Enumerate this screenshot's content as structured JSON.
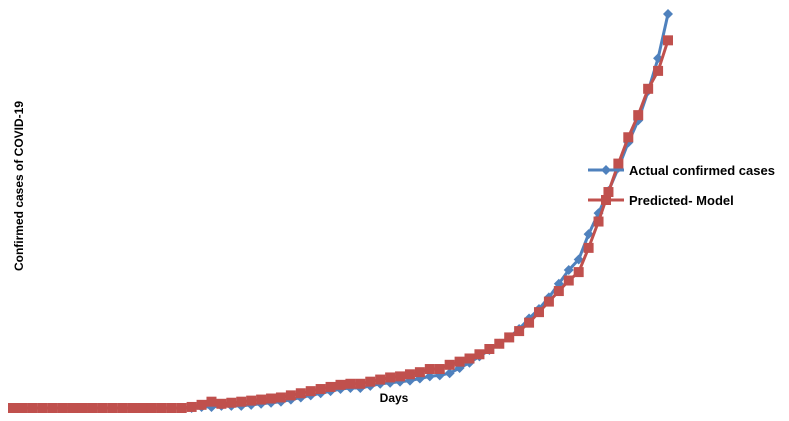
{
  "chart_data": {
    "type": "line",
    "xlabel": "Days",
    "ylabel": "Confirmed cases of COVID-19",
    "grid": false,
    "legend_position": "right",
    "x": [
      1,
      2,
      3,
      4,
      5,
      6,
      7,
      8,
      9,
      10,
      11,
      12,
      13,
      14,
      15,
      16,
      17,
      18,
      19,
      20,
      21,
      22,
      23,
      24,
      25,
      26,
      27,
      28,
      29,
      30,
      31,
      32,
      33,
      34,
      35,
      36,
      37,
      38,
      39,
      40,
      41,
      42,
      43,
      44,
      45,
      46,
      47,
      48,
      49,
      50,
      51,
      52,
      53,
      54,
      55,
      56,
      57,
      58,
      59,
      60,
      61,
      62,
      63,
      64,
      65,
      66,
      67
    ],
    "series": [
      {
        "name": "Actual confirmed cases",
        "color": "#4f81bd",
        "marker": "diamond",
        "values": [
          0,
          0,
          0,
          0,
          0,
          0,
          0,
          0,
          0,
          0,
          0,
          0,
          0,
          0,
          0,
          0,
          0,
          0,
          0,
          1,
          1,
          2,
          2,
          2,
          3,
          4,
          5,
          6,
          8,
          10,
          12,
          14,
          16,
          18,
          19,
          19,
          21,
          23,
          24,
          25,
          26,
          28,
          30,
          31,
          33,
          38,
          43,
          49,
          55,
          61,
          67,
          75,
          85,
          94,
          105,
          118,
          131,
          141,
          165,
          185,
          206,
          228,
          252,
          273,
          301,
          332,
          374
        ]
      },
      {
        "name": "Predicted- Model",
        "color": "#c0504d",
        "marker": "square",
        "values": [
          0,
          0,
          0,
          0,
          0,
          0,
          0,
          0,
          0,
          0,
          0,
          0,
          0,
          0,
          0,
          0,
          0,
          0,
          1,
          3,
          6,
          4,
          5,
          6,
          7,
          8,
          9,
          10,
          12,
          14,
          16,
          18,
          20,
          22,
          23,
          23,
          25,
          27,
          29,
          30,
          32,
          34,
          37,
          37,
          41,
          44,
          47,
          51,
          56,
          61,
          67,
          73,
          81,
          91,
          101,
          111,
          121,
          129,
          152,
          177,
          205,
          232,
          257,
          278,
          303,
          320,
          349
        ]
      }
    ]
  }
}
